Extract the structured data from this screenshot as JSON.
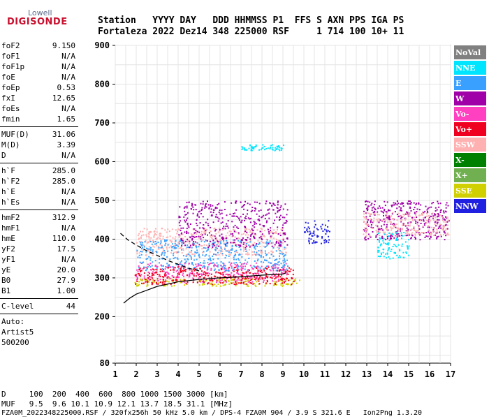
{
  "logo": {
    "line1": "Lowell",
    "line2": "DIGISONDE"
  },
  "header": {
    "line1": "Station   YYYY DAY   DDD HHMMSS P1  FFS S AXN PPS IGA PS",
    "line2": "Fortaleza 2022 Dez14 348 225000 RSF     1 714 100 10+ 11"
  },
  "params": [
    {
      "group": [
        {
          "name": "foF2",
          "value": "9.150"
        },
        {
          "name": "foF1",
          "value": "N/A"
        },
        {
          "name": "foF1p",
          "value": "N/A"
        },
        {
          "name": "foE",
          "value": "N/A"
        },
        {
          "name": "foEp",
          "value": "0.53"
        },
        {
          "name": "fxI",
          "value": "12.65"
        },
        {
          "name": "foEs",
          "value": "N/A"
        },
        {
          "name": "fmin",
          "value": "1.65"
        }
      ]
    },
    {
      "group": [
        {
          "name": "MUF(D)",
          "value": "31.06"
        },
        {
          "name": "M(D)",
          "value": "3.39"
        },
        {
          "name": "D",
          "value": "N/A"
        }
      ]
    },
    {
      "group": [
        {
          "name": "h`F",
          "value": "285.0"
        },
        {
          "name": "h`F2",
          "value": "285.0"
        },
        {
          "name": "h`E",
          "value": "N/A"
        },
        {
          "name": "h`Es",
          "value": "N/A"
        }
      ]
    },
    {
      "group": [
        {
          "name": "hmF2",
          "value": "312.9"
        },
        {
          "name": "hmF1",
          "value": "N/A"
        },
        {
          "name": "hmE",
          "value": "110.0"
        },
        {
          "name": "yF2",
          "value": "17.5"
        },
        {
          "name": "yF1",
          "value": "N/A"
        },
        {
          "name": "yE",
          "value": "20.0"
        },
        {
          "name": "B0",
          "value": "27.9"
        },
        {
          "name": "B1",
          "value": "1.00"
        }
      ]
    },
    {
      "group": [
        {
          "name": "C-level",
          "value": "44"
        }
      ]
    }
  ],
  "notes": [
    "Auto:",
    "Artist5",
    "500200"
  ],
  "legend": [
    {
      "label": "NoVal",
      "color": "#808080"
    },
    {
      "label": "NNE",
      "color": "#00e5ff"
    },
    {
      "label": "E",
      "color": "#3aa0ff"
    },
    {
      "label": "W",
      "color": "#a000a8"
    },
    {
      "label": "Vo-",
      "color": "#ff40c0"
    },
    {
      "label": "Vo+",
      "color": "#f00020"
    },
    {
      "label": "SSW",
      "color": "#ffb0b0"
    },
    {
      "label": "X-",
      "color": "#008000"
    },
    {
      "label": "X+",
      "color": "#70b050"
    },
    {
      "label": "SSE",
      "color": "#d0d000"
    },
    {
      "label": "NNW",
      "color": "#2020e0"
    }
  ],
  "footer": {
    "d_line": "D     100  200  400  600  800 1000 1500 3000 [km]",
    "muf_line": "MUF   9.5  9.6 10.1 10.9 12.1 13.7 18.5 31.1 [MHz]",
    "file_line": "FZA0M_2022348225000.RSF / 320fx256h 50 kHz 5.0 km / DPS-4 FZA0M 904 / 3.9 S 321.6 E   Ion2Png 1.3.20"
  },
  "chart_data": {
    "type": "scatter",
    "x_ticks": [
      "1",
      "2",
      "3",
      "4",
      "5",
      "6",
      "7",
      "8",
      "9",
      "10",
      "11",
      "12",
      "13",
      "14",
      "15",
      "16",
      "17"
    ],
    "y_ticks": [
      "80",
      "200",
      "300",
      "400",
      "500",
      "600",
      "700",
      "800",
      "900"
    ],
    "xlim": [
      1,
      17
    ],
    "ylim": [
      80,
      900
    ],
    "xlabel": "",
    "ylabel": "",
    "grid": true,
    "legend_position": "right",
    "profile_curve": {
      "style": "solid",
      "x": [
        1.4,
        1.7,
        2.0,
        2.5,
        3.0,
        4.0,
        5.0,
        6.0,
        7.0,
        8.0,
        9.0,
        9.15
      ],
      "y": [
        235,
        248,
        258,
        268,
        278,
        290,
        296,
        300,
        303,
        307,
        310,
        312.9
      ]
    },
    "trace_curve": {
      "style": "dashed",
      "x": [
        1.25,
        1.6,
        2.0,
        2.5,
        3.0,
        3.5,
        4.0,
        4.5,
        5.0
      ],
      "y": [
        415,
        398,
        385,
        370,
        358,
        345,
        335,
        325,
        318
      ]
    },
    "echo_regions": [
      {
        "label": "F-trace",
        "color": "#ff40c0",
        "x": [
          1.9,
          9.2
        ],
        "y": [
          290,
          340
        ]
      },
      {
        "label": "F-trace-low",
        "color": "#d0d000",
        "x": [
          1.9,
          9.8
        ],
        "y": [
          280,
          300
        ]
      },
      {
        "label": "F-trace-red",
        "color": "#f00020",
        "x": [
          1.9,
          9.5
        ],
        "y": [
          285,
          330
        ]
      },
      {
        "label": "spread-F",
        "color": "#ffb0b0",
        "x": [
          2.0,
          9.2
        ],
        "y": [
          360,
          430
        ]
      },
      {
        "label": "spread-F-E",
        "color": "#3aa0ff",
        "x": [
          2.0,
          9.2
        ],
        "y": [
          320,
          400
        ]
      },
      {
        "label": "spread-F-W",
        "color": "#a000a8",
        "x": [
          4.0,
          9.2
        ],
        "y": [
          380,
          500
        ]
      },
      {
        "label": "NNE-band",
        "color": "#00e5ff",
        "x": [
          7.0,
          9.0
        ],
        "y": [
          630,
          645
        ]
      },
      {
        "label": "mid-cluster",
        "color": "#2020e0",
        "x": [
          10.0,
          11.2
        ],
        "y": [
          390,
          450
        ]
      },
      {
        "label": "high-cluster",
        "color": "#a000a8",
        "x": [
          12.8,
          16.9
        ],
        "y": [
          400,
          500
        ]
      },
      {
        "label": "high-cluster-SSW",
        "color": "#ffb0b0",
        "x": [
          12.8,
          16.9
        ],
        "y": [
          410,
          470
        ]
      },
      {
        "label": "high-cluster-NNE",
        "color": "#00e5ff",
        "x": [
          13.5,
          15.0
        ],
        "y": [
          350,
          420
        ]
      }
    ]
  }
}
